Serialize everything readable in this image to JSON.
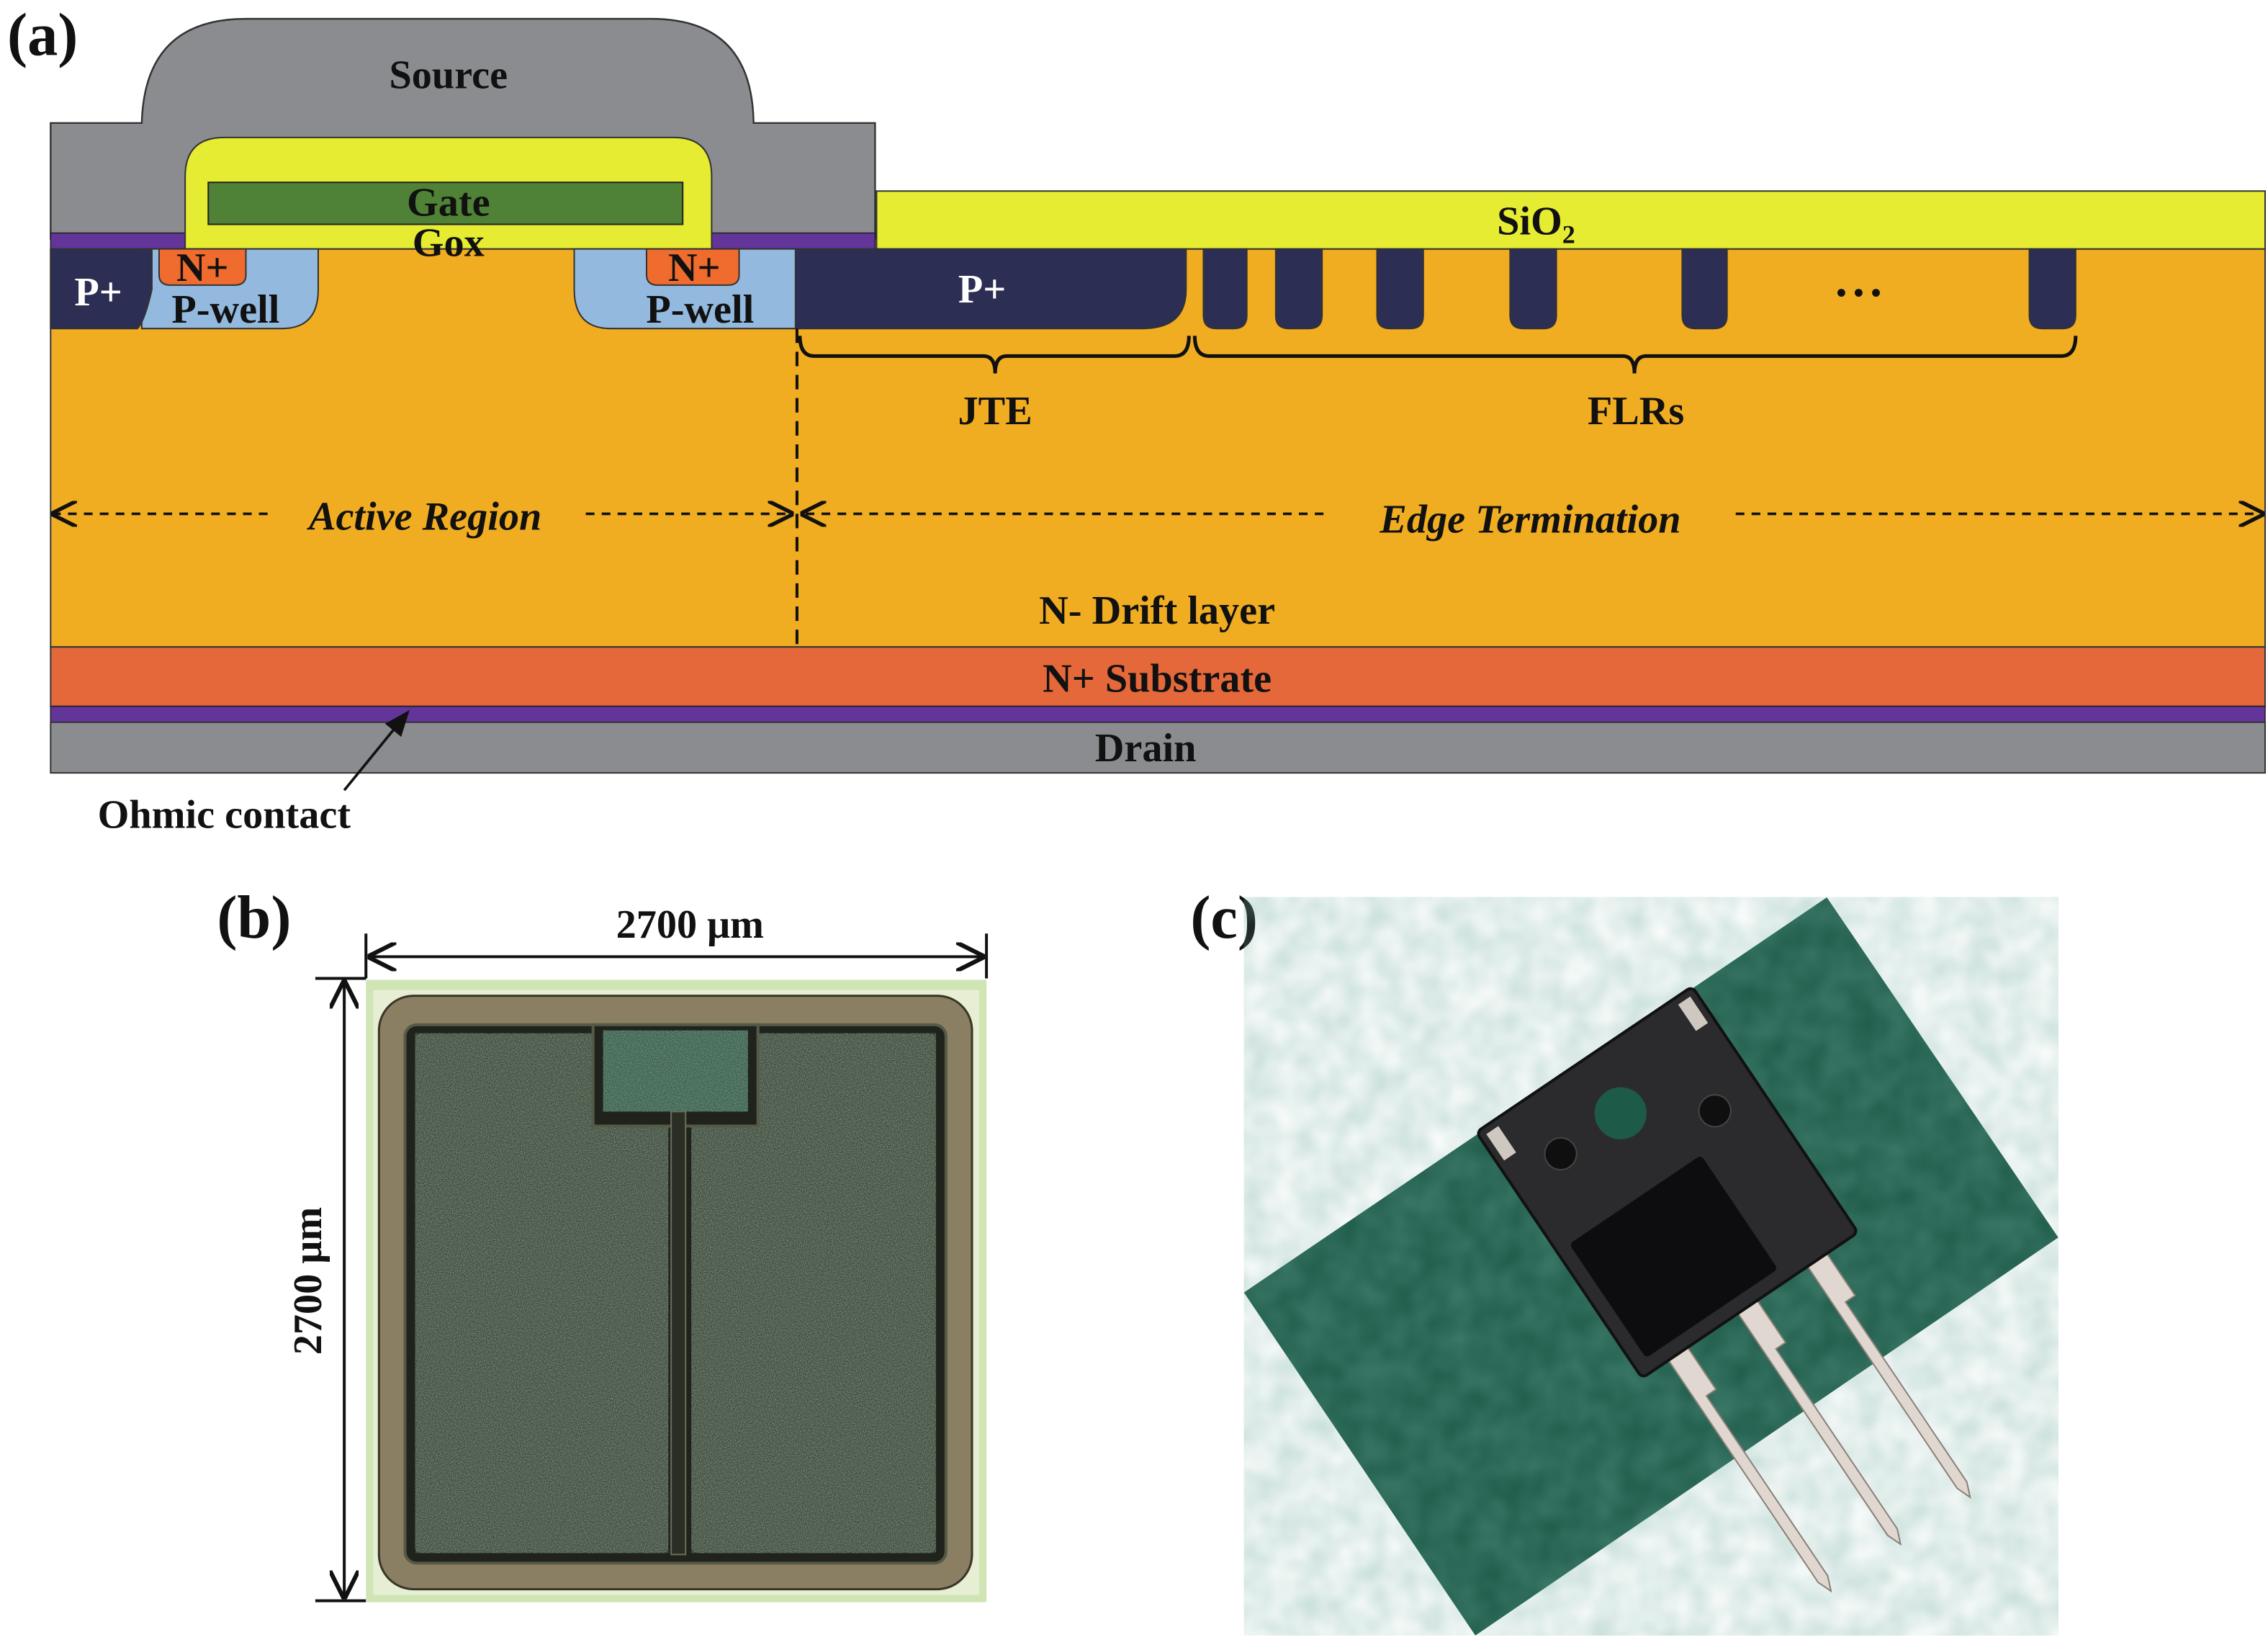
{
  "panels": {
    "a": "(a)",
    "b": "(b)",
    "c": "(c)"
  },
  "cross_section": {
    "source": "Source",
    "gate": "Gate",
    "gox": "Gox",
    "sio2_main": "SiO",
    "sio2_sub": "2",
    "p_plus_left": "P+",
    "n_plus_1": "N+",
    "p_well_1": "P-well",
    "n_plus_2": "N+",
    "p_well_2": "P-well",
    "p_plus_jte": "P+",
    "ellipsis": "• • •",
    "jte": "JTE",
    "flrs": "FLRs",
    "active_region": "Active Region",
    "edge_termination": "Edge Termination",
    "drift": "N- Drift layer",
    "substrate": "N+ Substrate",
    "drain": "Drain",
    "ohmic": "Ohmic contact"
  },
  "chip": {
    "width_label": "2700 μm",
    "height_label": "2700 μm"
  },
  "colors": {
    "metal": "#8a8c90",
    "oxide": "#e6ec32",
    "gate": "#4f8236",
    "ohmic": "#63359b",
    "drift": "#f1ad22",
    "p_plus": "#2c2e54",
    "p_well": "#93b9de",
    "n_plus": "#ef6b2e",
    "substrate": "#e4683a",
    "mat": "#1e5a48"
  }
}
